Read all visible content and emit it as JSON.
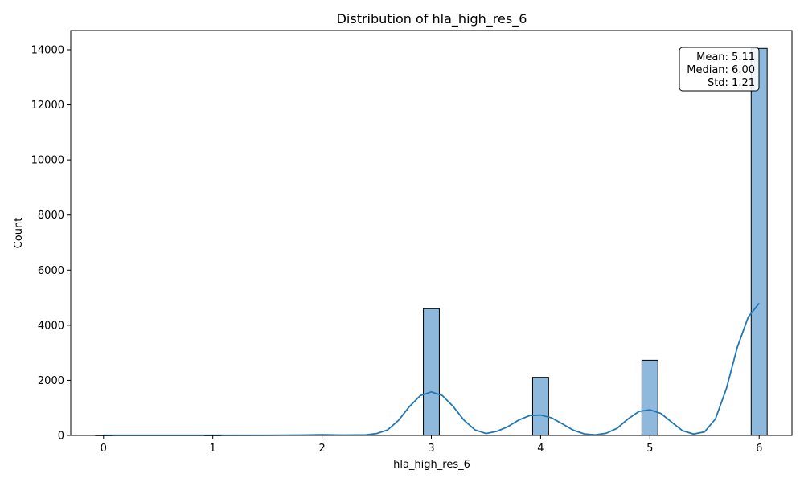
{
  "chart_data": {
    "type": "bar",
    "title": "Distribution of hla_high_res_6",
    "xlabel": "hla_high_res_6",
    "ylabel": "Count",
    "xlim": [
      -0.3,
      6.3
    ],
    "ylim": [
      0,
      14700
    ],
    "xticks": [
      0,
      1,
      2,
      3,
      4,
      5,
      6
    ],
    "yticks": [
      0,
      2000,
      4000,
      6000,
      8000,
      10000,
      12000,
      14000
    ],
    "bin_width": 0.1463,
    "bars": [
      {
        "x": 0.0,
        "count": 5
      },
      {
        "x": 1.0,
        "count": 4
      },
      {
        "x": 2.0,
        "count": 30
      },
      {
        "x": 3.0,
        "count": 4600
      },
      {
        "x": 4.0,
        "count": 2110
      },
      {
        "x": 5.0,
        "count": 2730
      },
      {
        "x": 6.0,
        "count": 14050
      }
    ],
    "kde": {
      "x": [
        0.0,
        0.5,
        1.0,
        1.5,
        1.8,
        2.0,
        2.2,
        2.4,
        2.5,
        2.6,
        2.7,
        2.8,
        2.9,
        3.0,
        3.1,
        3.2,
        3.3,
        3.4,
        3.5,
        3.6,
        3.7,
        3.8,
        3.9,
        4.0,
        4.1,
        4.2,
        4.3,
        4.4,
        4.5,
        4.6,
        4.7,
        4.8,
        4.9,
        5.0,
        5.1,
        5.2,
        5.3,
        5.4,
        5.5,
        5.6,
        5.7,
        5.8,
        5.9,
        6.0
      ],
      "y": [
        5,
        5,
        5,
        8,
        15,
        25,
        15,
        20,
        70,
        200,
        550,
        1050,
        1450,
        1580,
        1450,
        1050,
        550,
        200,
        70,
        150,
        320,
        560,
        720,
        740,
        640,
        420,
        190,
        55,
        20,
        80,
        260,
        600,
        870,
        930,
        800,
        480,
        170,
        50,
        130,
        600,
        1700,
        3200,
        4300,
        4800
      ]
    },
    "bar_color": "#8fb8dd",
    "bar_edge": "#000000",
    "line_color": "#1f77b4",
    "grid": false,
    "legend": "none",
    "stats_box": {
      "position": "top-right",
      "lines": [
        "Mean: 5.11",
        "Median: 6.00",
        "Std: 1.21"
      ]
    }
  }
}
